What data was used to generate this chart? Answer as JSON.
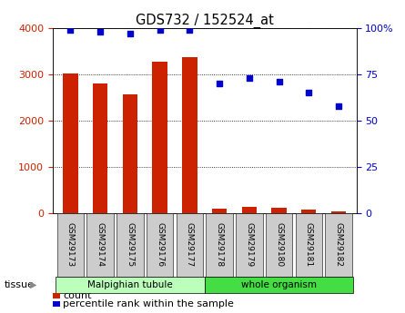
{
  "title": "GDS732 / 152524_at",
  "samples": [
    "GSM29173",
    "GSM29174",
    "GSM29175",
    "GSM29176",
    "GSM29177",
    "GSM29178",
    "GSM29179",
    "GSM29180",
    "GSM29181",
    "GSM29182"
  ],
  "counts": [
    3010,
    2810,
    2560,
    3270,
    3370,
    100,
    120,
    110,
    70,
    30
  ],
  "percentiles": [
    99,
    98,
    97,
    99,
    99,
    70,
    73,
    71,
    65,
    58
  ],
  "groups": [
    {
      "label": "Malpighian tubule",
      "start": 0,
      "end": 5,
      "color": "#bbffbb"
    },
    {
      "label": "whole organism",
      "start": 5,
      "end": 10,
      "color": "#44dd44"
    }
  ],
  "left_ylim": [
    0,
    4000
  ],
  "right_ylim": [
    0,
    100
  ],
  "left_yticks": [
    0,
    1000,
    2000,
    3000,
    4000
  ],
  "right_yticks": [
    0,
    25,
    50,
    75,
    100
  ],
  "right_yticklabels": [
    "0",
    "25",
    "50",
    "75",
    "100%"
  ],
  "bar_color": "#cc2200",
  "dot_color": "#0000cc",
  "bg_color": "#ffffff",
  "xtick_bg_color": "#cccccc",
  "left_tick_color": "#cc2200",
  "right_tick_color": "#0000cc",
  "tissue_label": "tissue",
  "legend_count_label": "count",
  "legend_pct_label": "percentile rank within the sample",
  "bar_width": 0.5
}
